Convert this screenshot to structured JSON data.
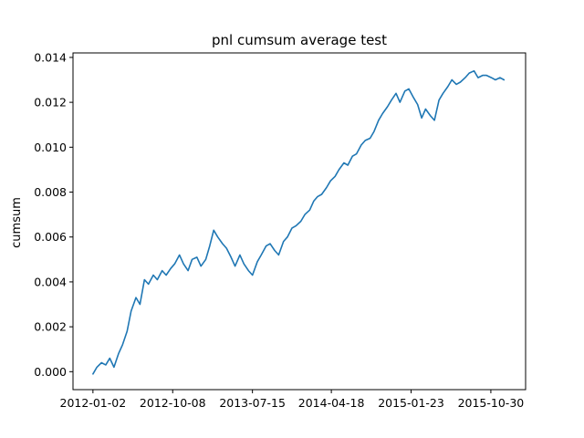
{
  "chart_data": {
    "type": "line",
    "title": "pnl cumsum average test",
    "xlabel": "",
    "ylabel": "cumsum",
    "x_type": "date",
    "xlim": [
      "2011-10-24",
      "2016-02-29"
    ],
    "ylim": [
      -0.0008,
      0.0142
    ],
    "xticks": [
      "2012-01-02",
      "2012-10-08",
      "2013-07-15",
      "2014-04-18",
      "2015-01-23",
      "2015-10-30"
    ],
    "yticks": [
      "0.000",
      "0.002",
      "0.004",
      "0.006",
      "0.008",
      "0.010",
      "0.012",
      "0.014"
    ],
    "grid": false,
    "colors": {
      "line": "#1f77b4"
    },
    "series": [
      {
        "x": [
          "2012-01-02",
          "2012-01-16",
          "2012-02-01",
          "2012-02-16",
          "2012-03-01",
          "2012-03-16",
          "2012-04-01",
          "2012-04-15",
          "2012-05-01",
          "2012-05-15",
          "2012-06-01",
          "2012-06-15",
          "2012-07-01",
          "2012-07-15",
          "2012-08-01",
          "2012-08-15",
          "2012-09-01",
          "2012-09-15",
          "2012-10-01",
          "2012-10-15",
          "2012-11-01",
          "2012-11-15",
          "2012-12-01",
          "2012-12-15",
          "2013-01-01",
          "2013-01-15",
          "2013-02-01",
          "2013-02-15",
          "2013-03-01",
          "2013-03-15",
          "2013-04-01",
          "2013-04-15",
          "2013-05-01",
          "2013-05-15",
          "2013-06-01",
          "2013-06-15",
          "2013-07-01",
          "2013-07-15",
          "2013-08-01",
          "2013-08-15",
          "2013-09-01",
          "2013-09-15",
          "2013-10-01",
          "2013-10-15",
          "2013-11-01",
          "2013-11-15",
          "2013-12-01",
          "2013-12-15",
          "2014-01-01",
          "2014-01-15",
          "2014-02-01",
          "2014-02-15",
          "2014-03-01",
          "2014-03-15",
          "2014-04-01",
          "2014-04-15",
          "2014-05-01",
          "2014-05-15",
          "2014-06-01",
          "2014-06-15",
          "2014-07-01",
          "2014-07-15",
          "2014-08-01",
          "2014-08-15",
          "2014-09-01",
          "2014-09-15",
          "2014-10-01",
          "2014-10-15",
          "2014-11-01",
          "2014-11-15",
          "2014-12-01",
          "2014-12-15",
          "2015-01-01",
          "2015-01-15",
          "2015-02-01",
          "2015-02-15",
          "2015-03-01",
          "2015-03-15",
          "2015-04-01",
          "2015-04-15",
          "2015-05-01",
          "2015-05-15",
          "2015-06-01",
          "2015-06-15",
          "2015-07-01",
          "2015-07-15",
          "2015-08-01",
          "2015-08-15",
          "2015-09-01",
          "2015-09-15",
          "2015-10-01",
          "2015-10-15",
          "2015-11-01",
          "2015-11-15",
          "2015-12-01",
          "2015-12-15"
        ],
        "y": [
          -0.0001,
          0.0002,
          0.0004,
          0.0003,
          0.0006,
          0.0002,
          0.0008,
          0.0012,
          0.0018,
          0.0027,
          0.0033,
          0.003,
          0.0041,
          0.0039,
          0.0043,
          0.0041,
          0.0045,
          0.0043,
          0.0046,
          0.0048,
          0.0052,
          0.0048,
          0.0045,
          0.005,
          0.0051,
          0.0047,
          0.005,
          0.0056,
          0.0063,
          0.006,
          0.0057,
          0.0055,
          0.0051,
          0.0047,
          0.0052,
          0.0048,
          0.0045,
          0.0043,
          0.0049,
          0.0052,
          0.0056,
          0.0057,
          0.0054,
          0.0052,
          0.0058,
          0.006,
          0.0064,
          0.0065,
          0.0067,
          0.007,
          0.0072,
          0.0076,
          0.0078,
          0.0079,
          0.0082,
          0.0085,
          0.0087,
          0.009,
          0.0093,
          0.0092,
          0.0096,
          0.0097,
          0.0101,
          0.0103,
          0.0104,
          0.0107,
          0.0112,
          0.0115,
          0.0118,
          0.0121,
          0.0124,
          0.012,
          0.0125,
          0.0126,
          0.0122,
          0.0119,
          0.0113,
          0.0117,
          0.0114,
          0.0112,
          0.0121,
          0.0124,
          0.0127,
          0.013,
          0.0128,
          0.0129,
          0.0131,
          0.0133,
          0.0134,
          0.0131,
          0.0132,
          0.0132,
          0.0131,
          0.013,
          0.0131,
          0.013
        ]
      }
    ]
  }
}
